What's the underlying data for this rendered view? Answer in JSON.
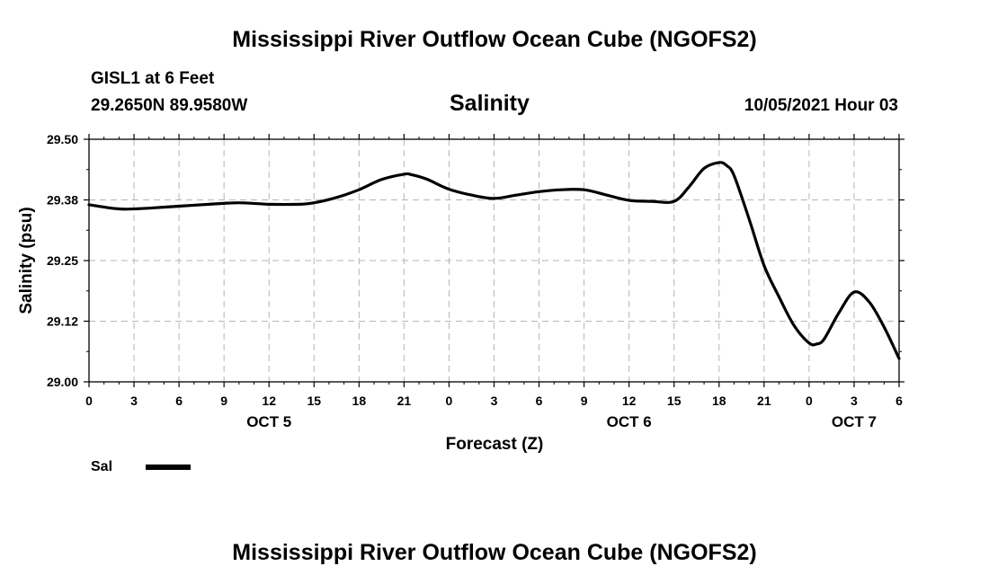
{
  "header": {
    "title": "Mississippi River Outflow Ocean Cube (NGOFS2)",
    "station": "GISL1 at 6 Feet",
    "coords": "29.2650N  89.9580W",
    "variable": "Salinity",
    "run": "10/05/2021 Hour 03"
  },
  "footer": {
    "title": "Mississippi River Outflow Ocean Cube (NGOFS2)"
  },
  "legend": {
    "label": "Sal",
    "color": "#000000"
  },
  "chart_data": {
    "type": "line",
    "title": "Salinity",
    "xlabel": "Forecast (Z)",
    "ylabel": "Salinity (psu)",
    "ylim": [
      29.0,
      29.5
    ],
    "xlim": [
      0,
      54
    ],
    "grid": true,
    "yticks": [
      "29.50",
      "29.38",
      "29.25",
      "29.12",
      "29.00"
    ],
    "ytick_values": [
      29.5,
      29.375,
      29.25,
      29.125,
      29.0
    ],
    "xticks": [
      {
        "h": 0,
        "label": "0"
      },
      {
        "h": 3,
        "label": "3"
      },
      {
        "h": 6,
        "label": "6"
      },
      {
        "h": 9,
        "label": "9"
      },
      {
        "h": 12,
        "label": "12"
      },
      {
        "h": 15,
        "label": "15"
      },
      {
        "h": 18,
        "label": "18"
      },
      {
        "h": 21,
        "label": "21"
      },
      {
        "h": 24,
        "label": "0"
      },
      {
        "h": 27,
        "label": "3"
      },
      {
        "h": 30,
        "label": "6"
      },
      {
        "h": 33,
        "label": "9"
      },
      {
        "h": 36,
        "label": "12"
      },
      {
        "h": 39,
        "label": "15"
      },
      {
        "h": 42,
        "label": "18"
      },
      {
        "h": 45,
        "label": "21"
      },
      {
        "h": 48,
        "label": "0"
      },
      {
        "h": 51,
        "label": "3"
      },
      {
        "h": 54,
        "label": "6"
      }
    ],
    "day_labels": [
      {
        "h": 12,
        "label": "OCT 5"
      },
      {
        "h": 36,
        "label": "OCT 6"
      },
      {
        "h": 51,
        "label": "OCT 7"
      }
    ],
    "series": [
      {
        "name": "Sal",
        "x": [
          0,
          1.5,
          2.5,
          4,
          6,
          8,
          10,
          12,
          14,
          15,
          16.5,
          18,
          19.5,
          21,
          21.5,
          22.5,
          24,
          25.5,
          27,
          28.5,
          30,
          31.5,
          33,
          34.5,
          36,
          37.5,
          39,
          40,
          41,
          42,
          42.5,
          43,
          44,
          45,
          46,
          47,
          48,
          48.5,
          49,
          50,
          51,
          52,
          53,
          54
        ],
        "y": [
          29.365,
          29.358,
          29.356,
          29.358,
          29.362,
          29.366,
          29.369,
          29.366,
          29.366,
          29.369,
          29.38,
          29.396,
          29.417,
          29.428,
          29.427,
          29.418,
          29.397,
          29.385,
          29.378,
          29.385,
          29.392,
          29.396,
          29.396,
          29.385,
          29.374,
          29.372,
          29.372,
          29.402,
          29.44,
          29.452,
          29.446,
          29.425,
          29.336,
          29.24,
          29.175,
          29.116,
          29.08,
          29.078,
          29.088,
          29.143,
          29.185,
          29.165,
          29.113,
          29.048
        ]
      }
    ]
  }
}
